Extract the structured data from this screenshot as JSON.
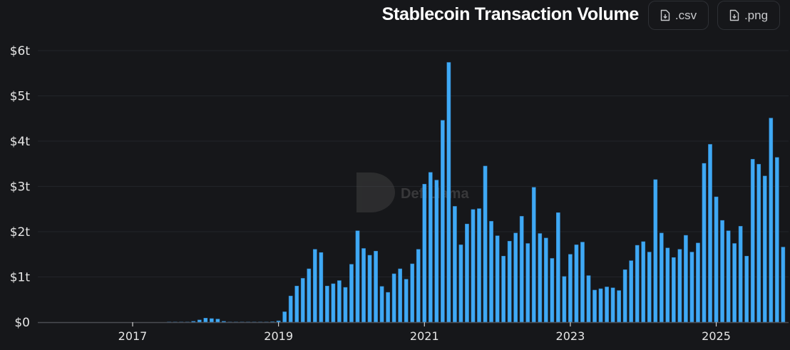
{
  "header": {
    "title": "Stablecoin Transaction Volume",
    "csv_label": ".csv",
    "png_label": ".png",
    "csv_icon": "file-download-icon",
    "png_icon": "file-download-icon"
  },
  "watermark": "DefiLlama",
  "colors": {
    "bar": "#3fa9f5",
    "background": "#16171a",
    "grid": "#222429"
  },
  "chart_data": {
    "type": "bar",
    "title": "Stablecoin Transaction Volume",
    "xlabel": "",
    "ylabel": "",
    "unit": "trillion USD",
    "ylim": [
      0,
      6
    ],
    "xlim": [
      "2015-09",
      "2025-12"
    ],
    "y_ticks": [
      {
        "v": 0,
        "label": "$0"
      },
      {
        "v": 1,
        "label": "$1t"
      },
      {
        "v": 2,
        "label": "$2t"
      },
      {
        "v": 3,
        "label": "$3t"
      },
      {
        "v": 4,
        "label": "$4t"
      },
      {
        "v": 5,
        "label": "$5t"
      },
      {
        "v": 6,
        "label": "$6t"
      }
    ],
    "x_ticks": [
      {
        "v": "2017-01",
        "label": "2017"
      },
      {
        "v": "2019-01",
        "label": "2019"
      },
      {
        "v": "2021-01",
        "label": "2021"
      },
      {
        "v": "2023-01",
        "label": "2023"
      },
      {
        "v": "2025-01",
        "label": "2025"
      }
    ],
    "grid": true,
    "start": "2017-07",
    "values": [
      0.005,
      0.005,
      0.005,
      0.005,
      0.02,
      0.05,
      0.09,
      0.08,
      0.07,
      0.02,
      0.005,
      0.005,
      0.005,
      0.005,
      0.005,
      0.005,
      0.005,
      0.01,
      0.03,
      0.23,
      0.58,
      0.8,
      0.97,
      1.18,
      1.61,
      1.54,
      0.8,
      0.85,
      0.92,
      0.77,
      1.28,
      2.02,
      1.63,
      1.48,
      1.57,
      0.79,
      0.66,
      1.07,
      1.18,
      0.95,
      1.29,
      1.61,
      3.05,
      3.31,
      3.14,
      4.46,
      5.74,
      2.56,
      1.71,
      2.17,
      2.49,
      2.51,
      3.45,
      2.23,
      1.91,
      1.46,
      1.79,
      1.97,
      2.34,
      1.74,
      2.98,
      1.96,
      1.86,
      1.41,
      2.42,
      1.01,
      1.5,
      1.71,
      1.77,
      1.03,
      0.71,
      0.74,
      0.78,
      0.76,
      0.7,
      1.16,
      1.36,
      1.7,
      1.78,
      1.55,
      3.15,
      1.97,
      1.64,
      1.43,
      1.61,
      1.92,
      1.55,
      1.75,
      3.51,
      3.93,
      2.77,
      2.25,
      2.02,
      1.74,
      2.12,
      1.46,
      3.6,
      3.49,
      3.23,
      4.51,
      3.64,
      1.66
    ]
  }
}
